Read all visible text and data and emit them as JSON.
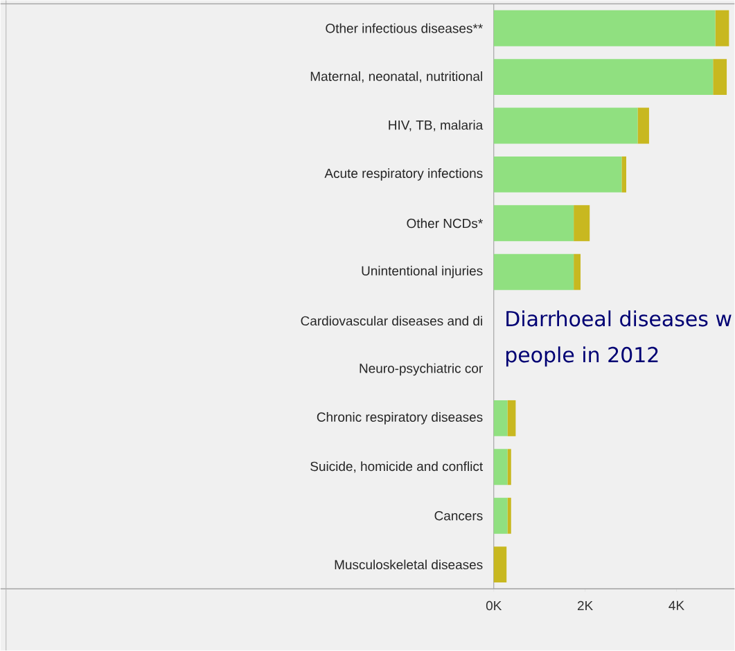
{
  "chart_data": {
    "type": "bar",
    "orientation": "horizontal",
    "stacked": true,
    "categories": [
      "Other infectious diseases**",
      "Maternal, neonatal, nutritional",
      "HIV, TB, malaria",
      "Acute respiratory infections",
      "Other NCDs*",
      "Unintentional injuries",
      "Cardiovascular diseases and di",
      "Neuro-psychiatric cor",
      "Chronic respiratory diseases",
      "Suicide, homicide and conflict",
      "Cancers",
      "Musculoskeletal diseases"
    ],
    "series": [
      {
        "color": "#90e080",
        "values": [
          4.85,
          4.8,
          3.15,
          2.8,
          1.75,
          1.75,
          null,
          null,
          0.3,
          0.3,
          0.3,
          0
        ]
      },
      {
        "color": "#c8b820",
        "values": [
          0.3,
          0.3,
          0.25,
          0.1,
          0.35,
          0.15,
          null,
          null,
          0.18,
          0.08,
          0.08,
          0.28
        ]
      }
    ],
    "xlim": [
      0,
      5.27
    ],
    "xticks": [
      {
        "value": 0,
        "label": "0K"
      },
      {
        "value": 2,
        "label": "2K"
      },
      {
        "value": 4,
        "label": "4K"
      }
    ],
    "annotations": [
      "Diarrhoeal diseases w",
      "people in 2012"
    ]
  }
}
